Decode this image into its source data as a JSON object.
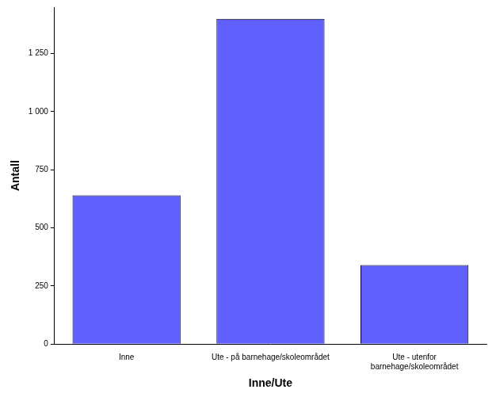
{
  "chart_data": {
    "type": "bar",
    "x_label": "Inne/Ute",
    "y_label": "Antall",
    "categories": [
      "Inne",
      "Ute - på barnehage/skoleområdet",
      "Ute - utenfor barnehage/skoleområdet"
    ],
    "values": [
      640,
      1400,
      340
    ],
    "color": "#6060ff",
    "ylim": [
      0,
      1450
    ],
    "yticks": [
      0,
      250,
      500,
      750,
      {
        "value": 1000,
        "label": "1 000"
      },
      {
        "value": 1250,
        "label": "1 250"
      }
    ],
    "grid": false,
    "legend": "none"
  }
}
